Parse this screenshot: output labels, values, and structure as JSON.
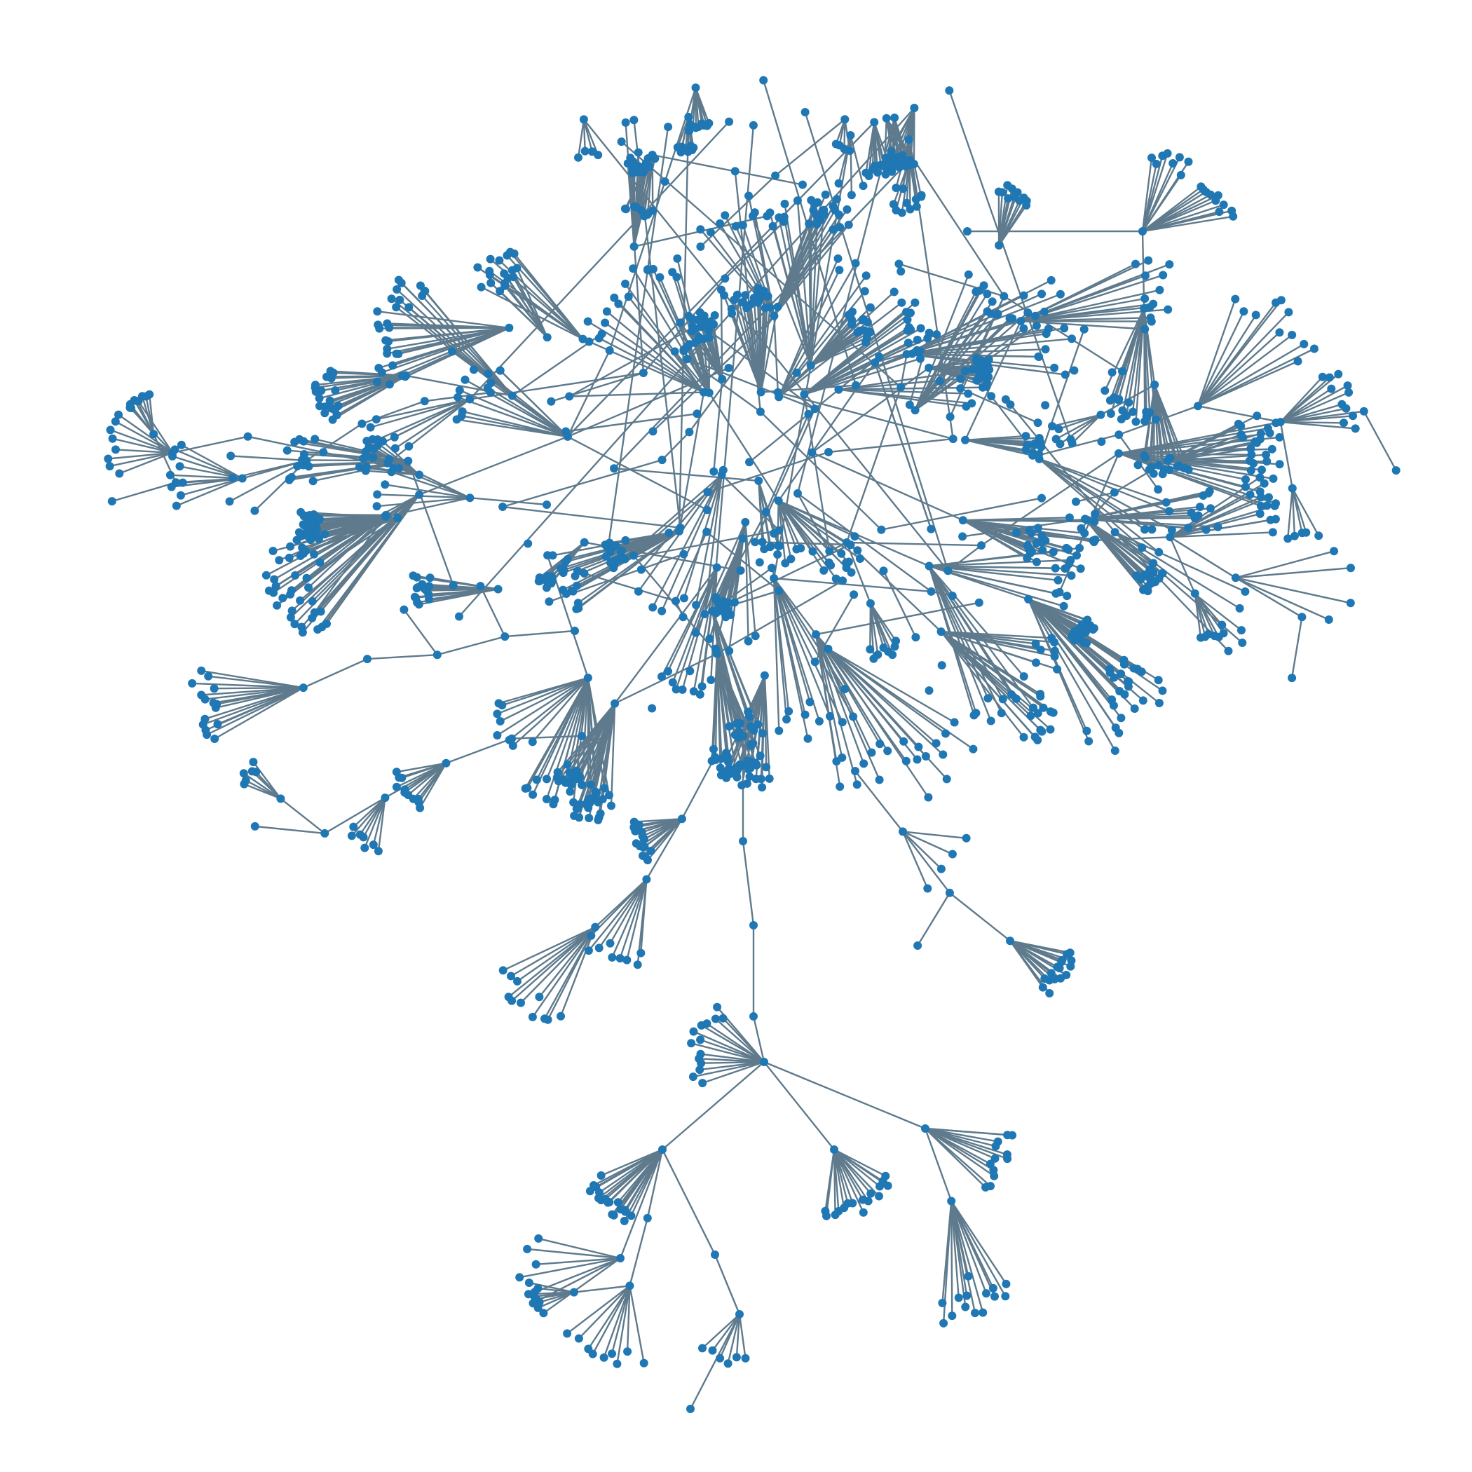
{
  "graph": {
    "type": "network",
    "layout": "force-directed",
    "edge_color": "#5e7a8c",
    "node_color": "#1f77b4",
    "background": "#ffffff",
    "seed": 1337
  }
}
